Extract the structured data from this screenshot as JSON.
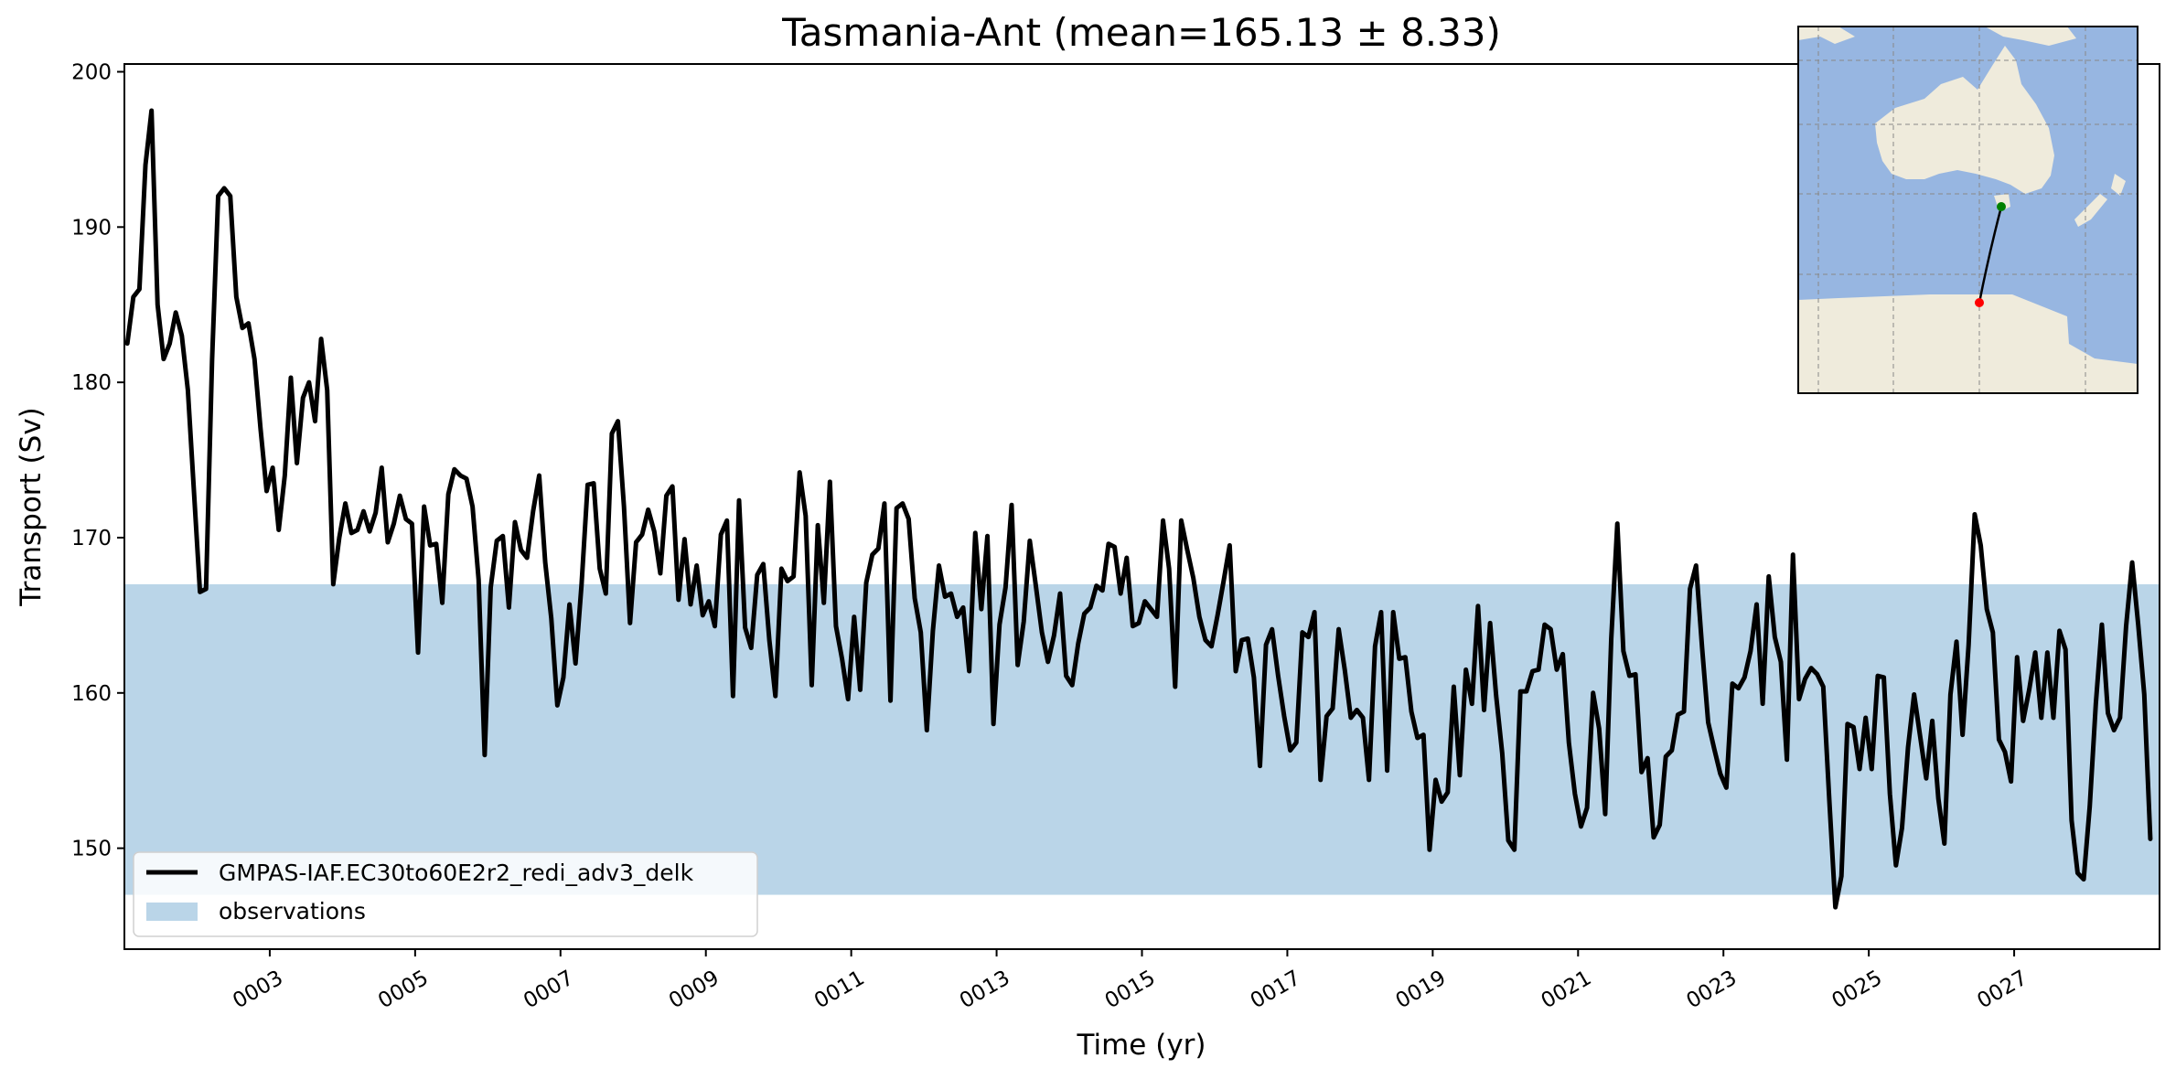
{
  "chart_data": {
    "type": "line",
    "title": "Tasmania-Ant (mean=165.13 ± 8.33)",
    "xlabel": "Time (yr)",
    "ylabel": "Transport (Sv)",
    "xlim": [
      1,
      29
    ],
    "ylim": [
      143.5,
      200.5
    ],
    "yticks": [
      150,
      160,
      170,
      180,
      190,
      200
    ],
    "xticks": [
      {
        "value": 3,
        "label": "0003"
      },
      {
        "value": 5,
        "label": "0005"
      },
      {
        "value": 7,
        "label": "0007"
      },
      {
        "value": 9,
        "label": "0009"
      },
      {
        "value": 11,
        "label": "0011"
      },
      {
        "value": 13,
        "label": "0013"
      },
      {
        "value": 15,
        "label": "0015"
      },
      {
        "value": 17,
        "label": "0017"
      },
      {
        "value": 19,
        "label": "0019"
      },
      {
        "value": 21,
        "label": "0021"
      },
      {
        "value": 23,
        "label": "0023"
      },
      {
        "value": 25,
        "label": "0025"
      },
      {
        "value": 27,
        "label": "0027"
      }
    ],
    "grid": false,
    "legend_position": "lower-left",
    "observations": {
      "name": "observations",
      "min": 147,
      "max": 167,
      "color": "#bad5e8"
    },
    "series": [
      {
        "name": "GMPAS-IAF.EC30to60E2r2_redi_adv3_delk",
        "color": "#000000",
        "start_year": 1.04,
        "step": 0.0833333,
        "values": [
          182.5,
          185.5,
          186.0,
          194.0,
          197.5,
          185.0,
          181.5,
          182.5,
          184.5,
          183.0,
          179.5,
          173.0,
          166.5,
          166.7,
          181.5,
          192.0,
          192.5,
          192.0,
          185.5,
          183.5,
          183.8,
          181.5,
          177.0,
          173.0,
          174.5,
          170.5,
          174.0,
          180.3,
          174.8,
          179.0,
          180.0,
          177.5,
          182.8,
          179.5,
          167.0,
          170.0,
          172.2,
          170.3,
          170.5,
          171.7,
          170.4,
          171.6,
          174.5,
          169.7,
          170.9,
          172.7,
          171.2,
          170.9,
          162.6,
          172.0,
          169.5,
          169.6,
          165.8,
          172.8,
          174.4,
          174.0,
          173.8,
          172.0,
          167.3,
          156.0,
          166.8,
          169.8,
          170.1,
          165.5,
          171.0,
          169.2,
          168.7,
          171.7,
          174.0,
          168.4,
          164.8,
          159.2,
          161.0,
          165.7,
          161.9,
          167.0,
          173.4,
          173.5,
          168.0,
          166.4,
          176.7,
          177.5,
          172.0,
          164.5,
          169.7,
          170.2,
          171.8,
          170.4,
          167.7,
          172.7,
          173.3,
          166.0,
          169.9,
          165.7,
          168.2,
          165.0,
          165.9,
          164.3,
          170.2,
          171.1,
          159.8,
          172.4,
          164.2,
          162.9,
          167.6,
          168.3,
          163.4,
          159.8,
          168.0,
          167.2,
          167.5,
          174.2,
          171.4,
          160.5,
          170.8,
          165.8,
          173.6,
          164.3,
          162.2,
          159.6,
          164.9,
          160.2,
          167.1,
          168.9,
          169.3,
          172.2,
          159.5,
          171.9,
          172.2,
          171.2,
          166.1,
          163.9,
          157.6,
          164.0,
          168.2,
          166.2,
          166.4,
          164.9,
          165.5,
          161.4,
          170.3,
          165.4,
          170.1,
          158.0,
          164.4,
          166.8,
          172.1,
          161.8,
          164.6,
          169.8,
          166.9,
          163.9,
          162.0,
          163.7,
          166.4,
          161.1,
          160.5,
          163.2,
          165.1,
          165.5,
          166.9,
          166.6,
          169.6,
          169.4,
          166.4,
          168.7,
          164.3,
          164.5,
          165.9,
          165.4,
          164.9,
          171.1,
          168.0,
          160.4,
          171.1,
          169.2,
          167.4,
          164.9,
          163.4,
          163.0,
          165.0,
          167.2,
          169.5,
          161.4,
          163.4,
          163.5,
          161.0,
          155.3,
          163.1,
          164.1,
          161.1,
          158.5,
          156.3,
          156.8,
          163.9,
          163.6,
          165.2,
          154.4,
          158.5,
          159.0,
          164.1,
          161.5,
          158.4,
          158.9,
          158.4,
          154.4,
          163.0,
          165.2,
          155.0,
          165.2,
          162.2,
          162.3,
          158.8,
          157.1,
          157.3,
          149.9,
          154.4,
          153.0,
          153.6,
          160.4,
          154.7,
          161.5,
          159.3,
          165.6,
          158.9,
          164.5,
          159.8,
          156.1,
          150.5,
          149.9,
          160.1,
          160.1,
          161.4,
          161.5,
          164.4,
          164.1,
          161.5,
          162.5,
          156.8,
          153.5,
          151.4,
          152.6,
          160.0,
          157.7,
          152.2,
          163.5,
          170.9,
          162.7,
          161.1,
          161.2,
          154.9,
          155.8,
          150.7,
          151.5,
          155.9,
          156.3,
          158.6,
          158.8,
          166.7,
          168.2,
          162.9,
          158.1,
          156.4,
          154.8,
          153.9,
          160.6,
          160.3,
          161.0,
          162.7,
          165.7,
          159.3,
          167.5,
          163.6,
          162.0,
          155.7,
          168.9,
          159.6,
          160.9,
          161.6,
          161.2,
          160.4,
          153.1,
          146.2,
          148.2,
          158.0,
          157.8,
          155.1,
          158.4,
          155.1,
          161.1,
          161.0,
          153.5,
          148.9,
          151.3,
          156.5,
          159.9,
          157.2,
          154.5,
          158.2,
          153.2,
          150.3,
          159.9,
          163.3,
          157.3,
          163.1,
          171.5,
          169.5,
          165.4,
          163.9,
          157.0,
          156.2,
          154.3,
          162.3,
          158.2,
          160.2,
          162.6,
          158.4,
          162.6,
          158.4,
          164.0,
          162.8,
          151.8,
          148.4,
          148.0,
          152.7,
          159.3,
          164.4,
          158.7,
          157.6,
          158.4,
          164.3,
          168.4,
          164.4,
          159.9,
          150.6
        ]
      }
    ]
  },
  "inset_map": {
    "title": "",
    "ocean_color": "#97b6e1",
    "land_color": "#efebdc",
    "start_point_color": "#008000",
    "end_point_color": "#ff0000"
  }
}
